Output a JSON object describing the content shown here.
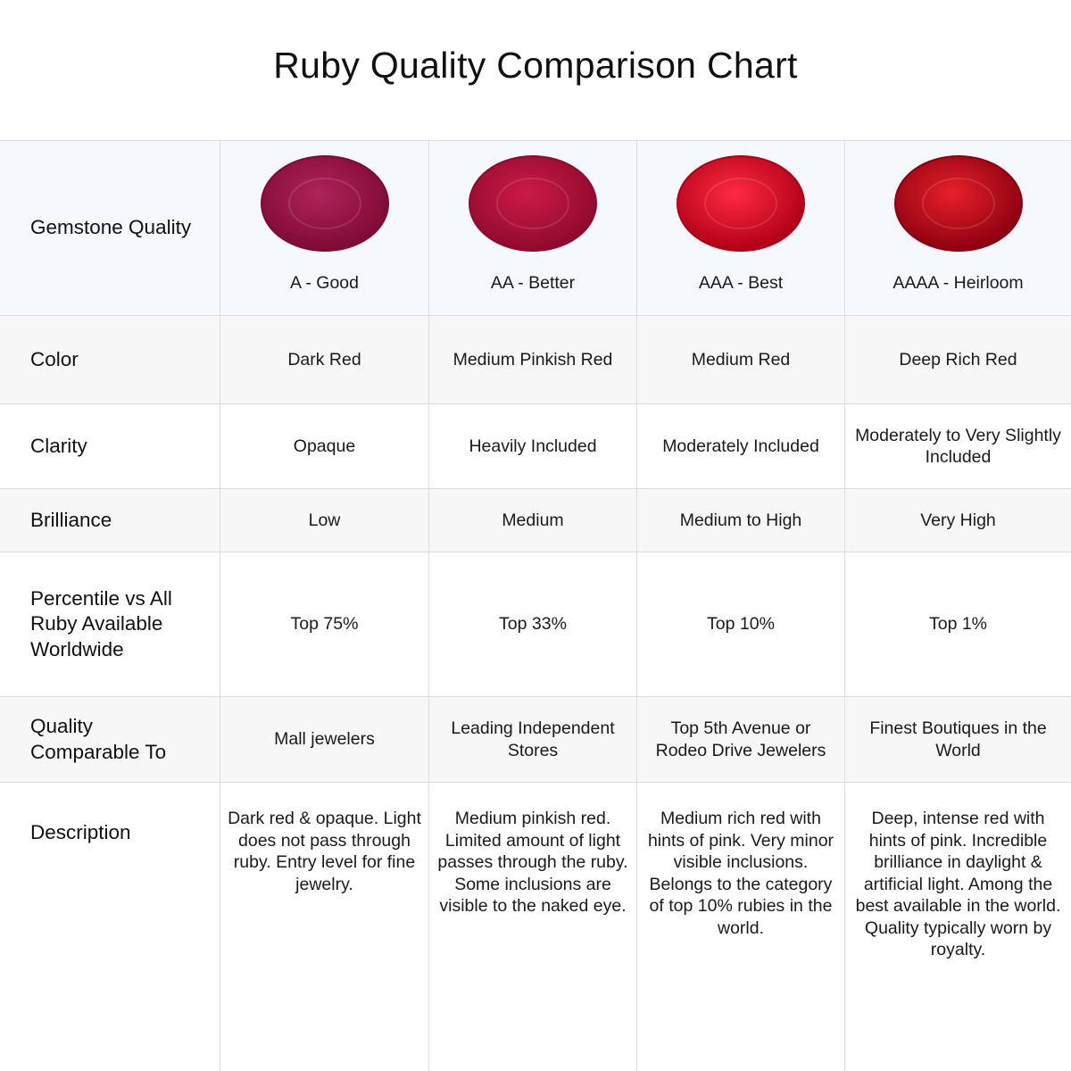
{
  "title": "Ruby Quality Comparison Chart",
  "table": {
    "header_label": "Gemstone Quality",
    "grades": [
      "A - Good",
      "AA - Better",
      "AAA - Best",
      "AAAA - Heirloom"
    ],
    "rows": [
      {
        "label": "Color",
        "cells": [
          "Dark Red",
          "Medium Pinkish Red",
          "Medium Red",
          "Deep Rich Red"
        ]
      },
      {
        "label": "Clarity",
        "cells": [
          "Opaque",
          "Heavily Included",
          "Moderately Included",
          "Moderately to Very Slightly Included"
        ]
      },
      {
        "label": "Brilliance",
        "cells": [
          "Low",
          "Medium",
          "Medium to High",
          "Very High"
        ]
      },
      {
        "label": "Percentile vs All Ruby Available Worldwide",
        "cells": [
          "Top 75%",
          "Top 33%",
          "Top 10%",
          "Top 1%"
        ]
      },
      {
        "label": "Quality Comparable To",
        "cells": [
          "Mall jewelers",
          "Leading Independent Stores",
          "Top 5th Avenue or Rodeo Drive Jewelers",
          "Finest Boutiques in the World"
        ]
      },
      {
        "label": "Description",
        "cells": [
          "Dark red & opaque. Light does not pass through ruby. Entry level for fine jewelry.",
          "Medium pinkish red. Limited amount of light passes through the ruby. Some inclusions are visible to the naked eye.",
          "Medium rich red with hints of pink. Very minor visible inclusions. Belongs to the category of top 10% rubies in the world.",
          "Deep, intense red with hints of pink. Incredible brilliance in daylight & artificial light. Among the best available in the world. Quality typically worn by royalty."
        ]
      }
    ]
  }
}
